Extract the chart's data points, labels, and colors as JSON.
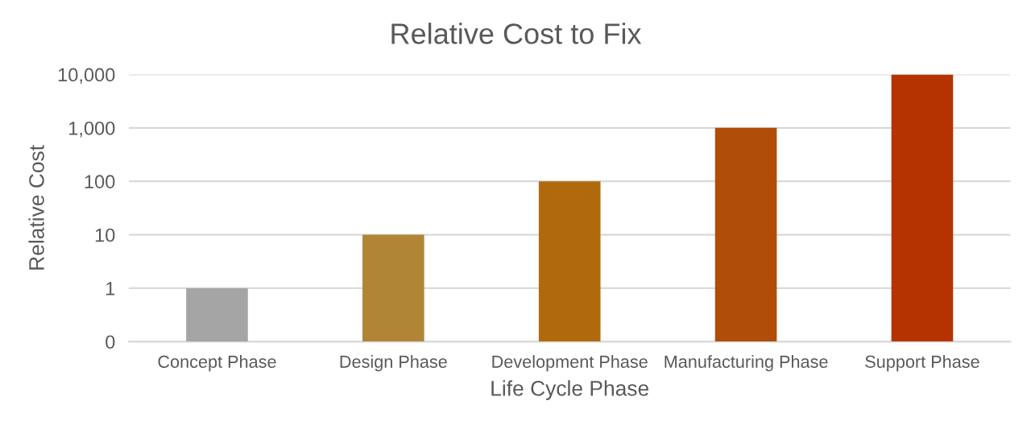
{
  "chart_data": {
    "type": "bar",
    "title": "Relative Cost to Fix",
    "xlabel": "Life Cycle Phase",
    "ylabel": "Relative Cost",
    "categories": [
      "Concept Phase",
      "Design Phase",
      "Development Phase",
      "Manufacturing Phase",
      "Support Phase"
    ],
    "values": [
      1,
      10,
      100,
      1000,
      10000
    ],
    "colors": [
      "#a5a5a5",
      "#b08535",
      "#b06a0c",
      "#b04d08",
      "#b53300"
    ],
    "log": "y",
    "ylim": [
      0.1,
      10000
    ],
    "yticks": [
      {
        "value": 0.1,
        "label": "0"
      },
      1,
      10,
      100,
      {
        "value": 1000,
        "label": "1,000"
      },
      {
        "value": 10000,
        "label": "10,000"
      }
    ],
    "grid": "y",
    "legend": false
  }
}
